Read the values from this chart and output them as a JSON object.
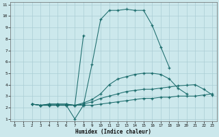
{
  "xlabel": "Humidex (Indice chaleur)",
  "bg_color": "#cce8ec",
  "grid_color": "#aacdd4",
  "line_color": "#1a6b6b",
  "xlim": [
    -0.5,
    23.5
  ],
  "ylim": [
    0.8,
    11.2
  ],
  "xticks": [
    0,
    1,
    2,
    3,
    4,
    5,
    6,
    7,
    8,
    9,
    10,
    11,
    12,
    13,
    14,
    15,
    16,
    17,
    18,
    19,
    20,
    21,
    22,
    23
  ],
  "yticks": [
    1,
    2,
    3,
    4,
    5,
    6,
    7,
    8,
    9,
    10,
    11
  ],
  "line1_x": [
    2,
    3,
    4,
    5,
    6,
    7,
    8,
    9,
    10,
    11,
    12,
    13,
    14,
    15,
    16,
    17,
    18,
    19,
    20,
    21,
    22,
    23
  ],
  "line1_y": [
    2.3,
    2.2,
    2.2,
    2.2,
    2.2,
    2.2,
    2.2,
    2.2,
    2.3,
    2.4,
    2.5,
    2.6,
    2.7,
    2.8,
    2.8,
    2.9,
    2.9,
    3.0,
    3.0,
    3.0,
    3.1,
    3.2
  ],
  "line2_x": [
    2,
    3,
    4,
    5,
    6,
    7,
    8,
    9,
    10,
    11,
    12,
    13,
    14,
    15,
    16,
    17,
    18,
    19,
    20,
    21,
    22,
    23
  ],
  "line2_y": [
    2.3,
    2.2,
    2.3,
    2.3,
    2.3,
    2.2,
    2.3,
    2.5,
    2.8,
    3.0,
    3.2,
    3.4,
    3.5,
    3.6,
    3.6,
    3.7,
    3.8,
    3.9,
    3.95,
    4.0,
    3.6,
    3.1
  ],
  "line3_x": [
    2,
    3,
    4,
    5,
    6,
    7,
    8,
    9,
    10,
    11,
    12,
    13,
    14,
    15,
    16,
    17,
    18,
    19,
    20
  ],
  "line3_y": [
    2.3,
    2.2,
    2.3,
    2.3,
    2.3,
    2.2,
    2.4,
    2.7,
    3.2,
    4.0,
    4.5,
    4.7,
    4.9,
    5.0,
    5.0,
    4.9,
    4.5,
    3.7,
    3.2
  ],
  "line4_x": [
    2,
    3,
    4,
    5,
    6,
    7,
    8,
    9,
    10,
    11,
    12,
    13,
    14,
    15,
    16,
    17,
    18
  ],
  "line4_y": [
    2.3,
    2.2,
    2.2,
    2.2,
    2.2,
    1.0,
    2.2,
    5.8,
    9.7,
    10.5,
    10.5,
    10.6,
    10.5,
    10.5,
    9.2,
    7.3,
    5.5
  ],
  "line5_x": [
    3,
    4,
    5,
    6,
    7,
    8
  ],
  "line5_y": [
    2.2,
    2.2,
    2.2,
    2.2,
    2.2,
    8.3
  ]
}
